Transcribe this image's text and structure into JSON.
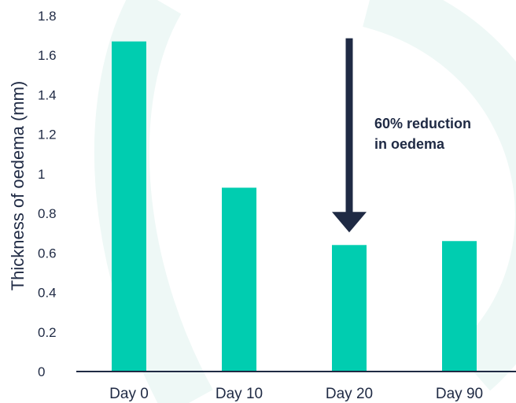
{
  "chart_data": {
    "type": "bar",
    "categories": [
      "Day 0",
      "Day 10",
      "Day 20",
      "Day 90"
    ],
    "values": [
      1.67,
      0.93,
      0.64,
      0.66
    ],
    "ylabel": "Thickness of oedema (mm)",
    "xlabel": "",
    "ylim": [
      0,
      1.8
    ],
    "yticks": [
      "0",
      "0.2",
      "0.4",
      "0.6",
      "0.8",
      "1",
      "1.2",
      "1.4",
      "1.6",
      "1.8"
    ],
    "grid": false,
    "annotation": {
      "lines": [
        "60% reduction",
        "in oedema"
      ],
      "arrow_from_value": 1.67,
      "arrow_to_value": 0.64,
      "arrow_category": "Day 20"
    }
  },
  "colors": {
    "bar": "#00cdb0",
    "text": "#1f2a44",
    "axis": "#1f2a44",
    "arrow": "#1f2a44",
    "background_arc": "#eef8f6"
  }
}
